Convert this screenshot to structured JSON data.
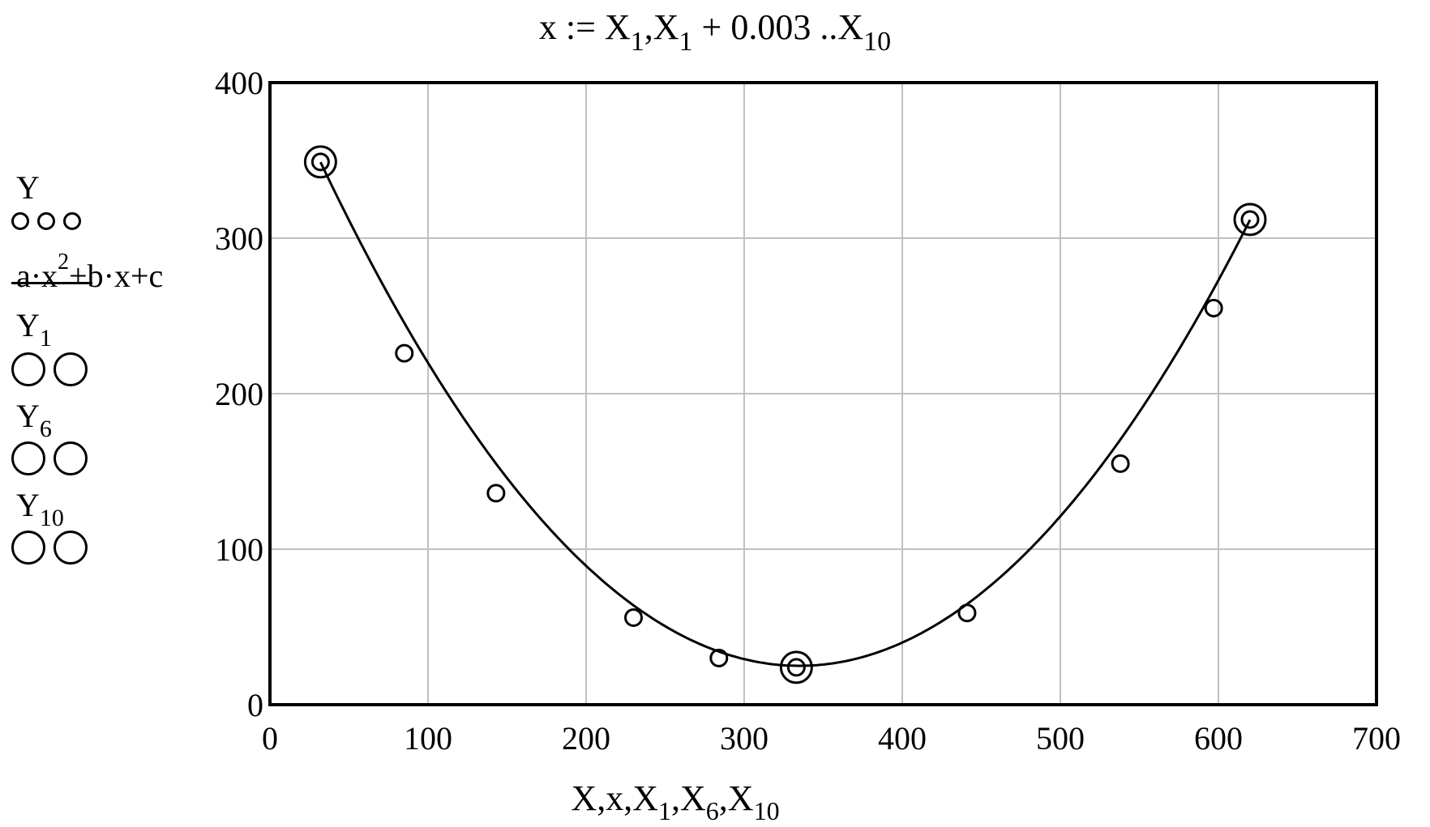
{
  "title": {
    "prefix": "x := X",
    "sub1": "1",
    "mid1": ",X",
    "sub2": "1",
    "mid2": " + 0.003 ..X",
    "sub3": "10"
  },
  "legend": {
    "series_y": {
      "label": "Y",
      "marker": "small-circles"
    },
    "series_fit": {
      "label_a": "a·x",
      "label_sup": "2",
      "label_b": "+b·x+c",
      "marker": "solid-line"
    },
    "series_y1": {
      "label": "Y",
      "sub": "1",
      "marker": "large-circles"
    },
    "series_y6": {
      "label": "Y",
      "sub": "6",
      "marker": "large-circles"
    },
    "series_y10": {
      "label": "Y",
      "sub": "10",
      "marker": "large-circles"
    }
  },
  "xlabel": {
    "p1": "X,x,X",
    "s1": "1",
    "p2": ",X",
    "s2": "6",
    "p3": ",X",
    "s3": "10"
  },
  "colors": {
    "grid": "#c0c0c0",
    "axis": "#000000",
    "series": "#000000"
  },
  "chart_data": {
    "type": "scatter",
    "title": "x := X1, X1 + 0.003 .. X10",
    "xlabel": "X, x, X1, X6, X10",
    "ylabel": "Y, a·x^2+b·x+c, Y1, Y6, Y10",
    "xlim": [
      0,
      700
    ],
    "ylim": [
      0,
      400
    ],
    "xticks": [
      0,
      100,
      200,
      300,
      400,
      500,
      600,
      700
    ],
    "yticks": [
      0,
      100,
      200,
      300,
      400
    ],
    "grid": true,
    "legend_position": "left",
    "series": [
      {
        "name": "Y",
        "type": "scatter",
        "marker": "small-circle",
        "x": [
          32,
          85,
          143,
          230,
          284,
          333,
          441,
          538,
          597,
          620
        ],
        "y": [
          349,
          226,
          136,
          56,
          30,
          24,
          59,
          155,
          255,
          312
        ]
      },
      {
        "name": "a·x^2+b·x+c",
        "type": "line",
        "fit": {
          "a": 0.003529,
          "b": -2.364,
          "c": 420.9
        },
        "x_range": [
          32,
          620
        ]
      },
      {
        "name": "Y1",
        "type": "scatter",
        "marker": "large-circle",
        "x": [
          32
        ],
        "y": [
          349
        ]
      },
      {
        "name": "Y6",
        "type": "scatter",
        "marker": "large-circle",
        "x": [
          333
        ],
        "y": [
          24
        ]
      },
      {
        "name": "Y10",
        "type": "scatter",
        "marker": "large-circle",
        "x": [
          620
        ],
        "y": [
          312
        ]
      }
    ]
  }
}
